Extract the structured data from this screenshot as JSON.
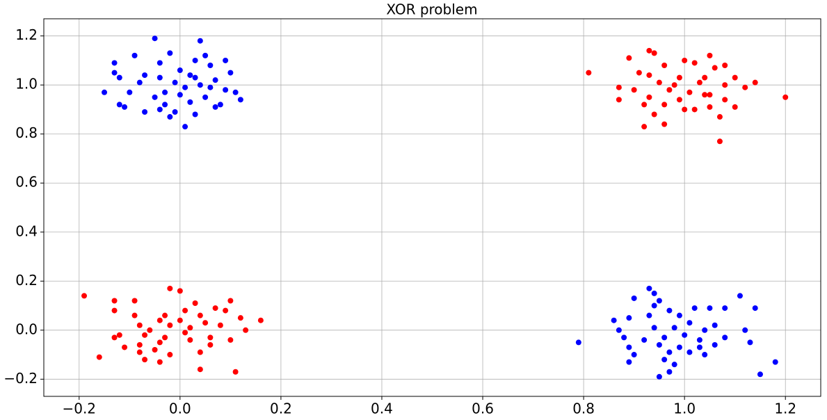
{
  "chart_data": {
    "type": "scatter",
    "title": "XOR problem",
    "xlim": [
      -0.27,
      1.27
    ],
    "ylim": [
      -0.27,
      1.27
    ],
    "grid": true,
    "xticks": [
      {
        "value": -0.2,
        "label": "−0.2"
      },
      {
        "value": 0,
        "label": "0.0"
      },
      {
        "value": 0.2,
        "label": "0.2"
      },
      {
        "value": 0.4,
        "label": "0.4"
      },
      {
        "value": 0.6,
        "label": "0.6"
      },
      {
        "value": 0.8,
        "label": "0.8"
      },
      {
        "value": 1,
        "label": "1.0"
      },
      {
        "value": 1.2,
        "label": "1.2"
      }
    ],
    "yticks": [
      {
        "value": -0.2,
        "label": "−0.2"
      },
      {
        "value": 0,
        "label": "0.0"
      },
      {
        "value": 0.2,
        "label": "0.2"
      },
      {
        "value": 0.4,
        "label": "0.4"
      },
      {
        "value": 0.6,
        "label": "0.6"
      },
      {
        "value": 0.8,
        "label": "0.8"
      },
      {
        "value": 1,
        "label": "1.0"
      },
      {
        "value": 1.2,
        "label": "1.2"
      }
    ],
    "series": [
      {
        "color": "#0000ff",
        "x": [
          -0.05,
          0.04,
          -0.09,
          -0.02,
          0.05,
          0.03,
          0.09,
          -0.13,
          -0.04,
          0.06,
          -0.13,
          -0.07,
          0.0,
          0.02,
          0.1,
          -0.12,
          -0.04,
          0.03,
          0.07,
          -0.15,
          -0.08,
          -0.01,
          0.04,
          0.09,
          -0.1,
          -0.03,
          0.01,
          0.06,
          0.11,
          -0.12,
          -0.05,
          0.0,
          0.05,
          0.12,
          -0.11,
          -0.07,
          -0.03,
          0.02,
          0.07,
          -0.01,
          0.03,
          -0.02,
          0.01,
          0.08,
          -0.04,
          0.93,
          0.94,
          1.11,
          0.9,
          0.95,
          1.02,
          1.05,
          1.14,
          0.94,
          0.97,
          0.86,
          0.89,
          0.93,
          0.99,
          1.08,
          1.01,
          1.06,
          0.87,
          0.94,
          0.98,
          1.04,
          1.12,
          0.88,
          0.92,
          0.96,
          1.0,
          1.03,
          1.08,
          0.79,
          0.89,
          0.95,
          0.99,
          1.03,
          1.06,
          1.13,
          0.9,
          0.97,
          1.01,
          1.04,
          0.89,
          0.96,
          0.98,
          1.18,
          0.97,
          0.95,
          1.15
        ],
        "values": [
          1.19,
          1.18,
          1.12,
          1.13,
          1.12,
          1.1,
          1.1,
          1.09,
          1.09,
          1.08,
          1.05,
          1.04,
          1.06,
          1.04,
          1.05,
          1.03,
          1.03,
          1.03,
          1.02,
          0.97,
          1.01,
          1.01,
          1.0,
          0.98,
          0.97,
          0.97,
          0.99,
          0.99,
          0.97,
          0.92,
          0.95,
          0.96,
          0.95,
          0.94,
          0.91,
          0.89,
          0.92,
          0.93,
          0.91,
          0.89,
          0.88,
          0.87,
          0.83,
          0.92,
          0.9,
          0.17,
          0.15,
          0.14,
          0.13,
          0.12,
          0.09,
          0.09,
          0.09,
          0.1,
          0.08,
          0.04,
          0.05,
          0.06,
          0.06,
          0.09,
          0.03,
          0.02,
          0.0,
          0.01,
          0.01,
          0.0,
          0.0,
          -0.03,
          -0.04,
          -0.03,
          -0.02,
          -0.04,
          -0.03,
          -0.05,
          -0.07,
          -0.06,
          -0.07,
          -0.07,
          -0.06,
          -0.05,
          -0.1,
          -0.09,
          -0.09,
          -0.1,
          -0.13,
          -0.12,
          -0.14,
          -0.13,
          -0.17,
          -0.19,
          -0.18
        ]
      },
      {
        "color": "#ff0000",
        "x": [
          0.93,
          0.94,
          1.05,
          0.89,
          1.0,
          1.08,
          0.96,
          1.02,
          0.91,
          1.06,
          0.81,
          0.93,
          0.99,
          1.1,
          1.14,
          0.87,
          0.95,
          1.03,
          1.08,
          0.9,
          0.97,
          1.01,
          1.05,
          1.12,
          0.87,
          0.93,
          0.99,
          1.04,
          1.08,
          1.2,
          0.92,
          0.96,
          1.0,
          1.05,
          1.1,
          0.94,
          1.02,
          1.07,
          0.92,
          0.96,
          1.07,
          0.98,
          1.04,
          -0.02,
          0.0,
          -0.19,
          -0.13,
          -0.09,
          0.03,
          0.1,
          -0.13,
          0.01,
          0.07,
          -0.09,
          -0.03,
          0.04,
          0.09,
          -0.08,
          -0.04,
          0.0,
          0.05,
          0.12,
          0.16,
          -0.06,
          -0.02,
          0.02,
          0.08,
          0.13,
          -0.12,
          -0.13,
          -0.07,
          -0.03,
          0.01,
          0.06,
          0.1,
          -0.11,
          -0.08,
          -0.04,
          0.02,
          0.06,
          -0.08,
          -0.05,
          -0.02,
          0.04,
          -0.07,
          -0.04,
          -0.16,
          0.04,
          0.11
        ],
        "values": [
          1.14,
          1.13,
          1.12,
          1.11,
          1.1,
          1.08,
          1.08,
          1.09,
          1.05,
          1.07,
          1.05,
          1.04,
          1.03,
          1.03,
          1.01,
          0.99,
          1.01,
          1.01,
          1.0,
          0.98,
          0.98,
          0.97,
          0.96,
          0.99,
          0.94,
          0.95,
          0.94,
          0.96,
          0.94,
          0.95,
          0.92,
          0.92,
          0.9,
          0.91,
          0.91,
          0.88,
          0.9,
          0.87,
          0.83,
          0.84,
          0.77,
          1.0,
          1.03,
          0.17,
          0.16,
          0.14,
          0.12,
          0.12,
          0.11,
          0.12,
          0.08,
          0.08,
          0.09,
          0.06,
          0.06,
          0.06,
          0.08,
          0.02,
          0.04,
          0.04,
          0.03,
          0.05,
          0.04,
          0.0,
          0.02,
          0.01,
          0.02,
          0.0,
          -0.02,
          -0.03,
          -0.02,
          -0.03,
          -0.01,
          -0.03,
          -0.04,
          -0.07,
          -0.06,
          -0.05,
          -0.04,
          -0.06,
          -0.09,
          -0.08,
          -0.1,
          -0.09,
          -0.12,
          -0.13,
          -0.11,
          -0.16,
          -0.17
        ]
      }
    ]
  }
}
